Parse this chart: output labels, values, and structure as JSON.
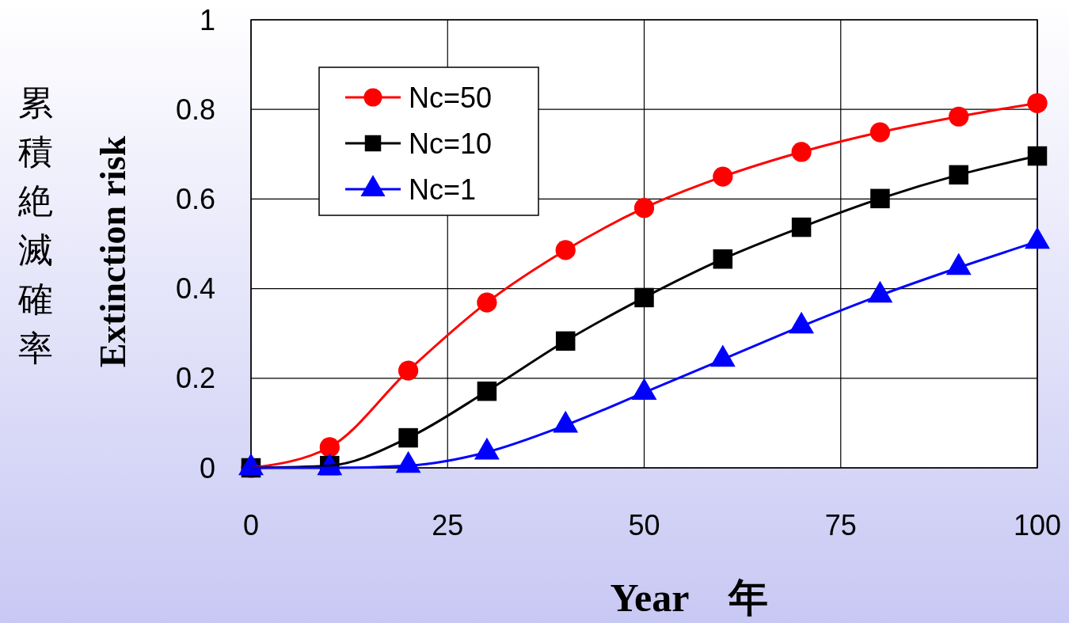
{
  "chart_data": {
    "type": "line",
    "xlabel": "Year　年",
    "ylabel": "Extinction risk",
    "annotations": [
      "累積絶滅確率"
    ],
    "x": [
      0,
      10,
      20,
      30,
      40,
      50,
      60,
      70,
      80,
      90,
      100
    ],
    "series": [
      {
        "name": "Nc=50",
        "color": "#ff0000",
        "marker": "circle",
        "values": [
          0,
          0.046,
          0.217,
          0.369,
          0.486,
          0.58,
          0.65,
          0.705,
          0.749,
          0.784,
          0.814
        ]
      },
      {
        "name": "Nc=10",
        "color": "#000000",
        "marker": "square",
        "values": [
          0,
          0.005,
          0.067,
          0.171,
          0.283,
          0.38,
          0.466,
          0.537,
          0.601,
          0.654,
          0.696
        ]
      },
      {
        "name": "Nc=1",
        "color": "#0000ff",
        "marker": "triangle",
        "values": [
          0,
          0,
          0.005,
          0.035,
          0.095,
          0.168,
          0.242,
          0.316,
          0.385,
          0.447,
          0.505
        ]
      }
    ],
    "xlim": [
      0,
      100
    ],
    "xticks": [
      0,
      25,
      50,
      75,
      100
    ],
    "ylim": [
      0,
      1
    ],
    "yticks": [
      0,
      0.2,
      0.4,
      0.6,
      0.8,
      1
    ],
    "grid": true,
    "legend": "top left",
    "line_style": "solid"
  }
}
